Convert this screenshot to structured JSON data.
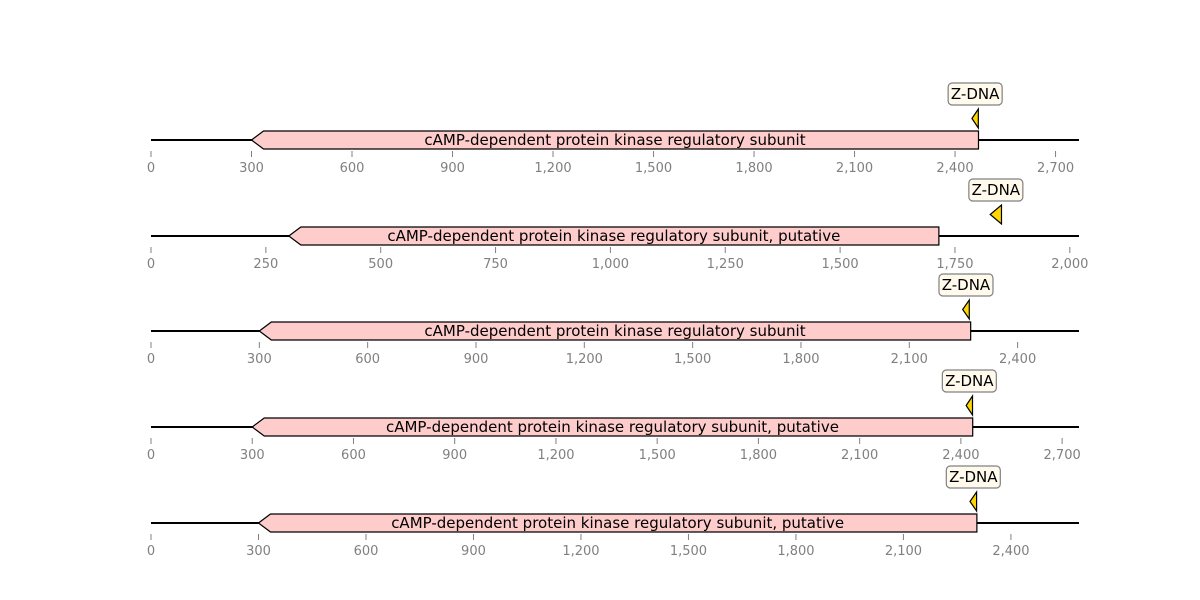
{
  "colors": {
    "feature_fill": "#ffcccc",
    "site_fill": "#ffd700",
    "site_box_fill": "#fffaeb",
    "axis_gray": "#808080",
    "backbone": "#000000"
  },
  "tracks": [
    {
      "length": 2770,
      "ticks": [
        0,
        300,
        600,
        900,
        1200,
        1500,
        1800,
        2100,
        2400,
        2700
      ],
      "tick_labels": [
        "0",
        "300",
        "600",
        "900",
        "1,200",
        "1,500",
        "1,800",
        "2,100",
        "2,400",
        "2,700"
      ],
      "feature": {
        "label": "cAMP-dependent protein kinase regulatory subunit",
        "start": 300,
        "end": 2470,
        "strand": -1
      },
      "site": {
        "label": "Z-DNA",
        "start": 2455,
        "end": 2465
      }
    },
    {
      "length": 2020,
      "ticks": [
        0,
        250,
        500,
        750,
        1000,
        1250,
        1500,
        1750,
        2000
      ],
      "tick_labels": [
        "0",
        "250",
        "500",
        "750",
        "1,000",
        "1,250",
        "1,500",
        "1,750",
        "2,000"
      ],
      "feature": {
        "label": "cAMP-dependent protein kinase regulatory subunit, putative",
        "start": 300,
        "end": 1715,
        "strand": -1
      },
      "site": {
        "label": "Z-DNA",
        "start": 1830,
        "end": 1848
      }
    },
    {
      "length": 2570,
      "ticks": [
        0,
        300,
        600,
        900,
        1200,
        1500,
        1800,
        2100,
        2400
      ],
      "tick_labels": [
        "0",
        "300",
        "600",
        "900",
        "1,200",
        "1,500",
        "1,800",
        "2,100",
        "2,400"
      ],
      "feature": {
        "label": "cAMP-dependent protein kinase regulatory subunit",
        "start": 300,
        "end": 2270,
        "strand": -1
      },
      "site": {
        "label": "Z-DNA",
        "start": 2252,
        "end": 2262
      }
    },
    {
      "length": 2750,
      "ticks": [
        0,
        300,
        600,
        900,
        1200,
        1500,
        1800,
        2100,
        2400,
        2700
      ],
      "tick_labels": [
        "0",
        "300",
        "600",
        "900",
        "1,200",
        "1,500",
        "1,800",
        "2,100",
        "2,400",
        "2,700"
      ],
      "feature": {
        "label": "cAMP-dependent protein kinase regulatory subunit, putative",
        "start": 300,
        "end": 2435,
        "strand": -1
      },
      "site": {
        "label": "Z-DNA",
        "start": 2420,
        "end": 2430
      }
    },
    {
      "length": 2590,
      "ticks": [
        0,
        300,
        600,
        900,
        1200,
        1500,
        1800,
        2100,
        2400
      ],
      "tick_labels": [
        "0",
        "300",
        "600",
        "900",
        "1,200",
        "1,500",
        "1,800",
        "2,100",
        "2,400"
      ],
      "feature": {
        "label": "cAMP-dependent protein kinase regulatory subunit, putative",
        "start": 300,
        "end": 2305,
        "strand": -1
      },
      "site": {
        "label": "Z-DNA",
        "start": 2290,
        "end": 2300
      }
    }
  ]
}
